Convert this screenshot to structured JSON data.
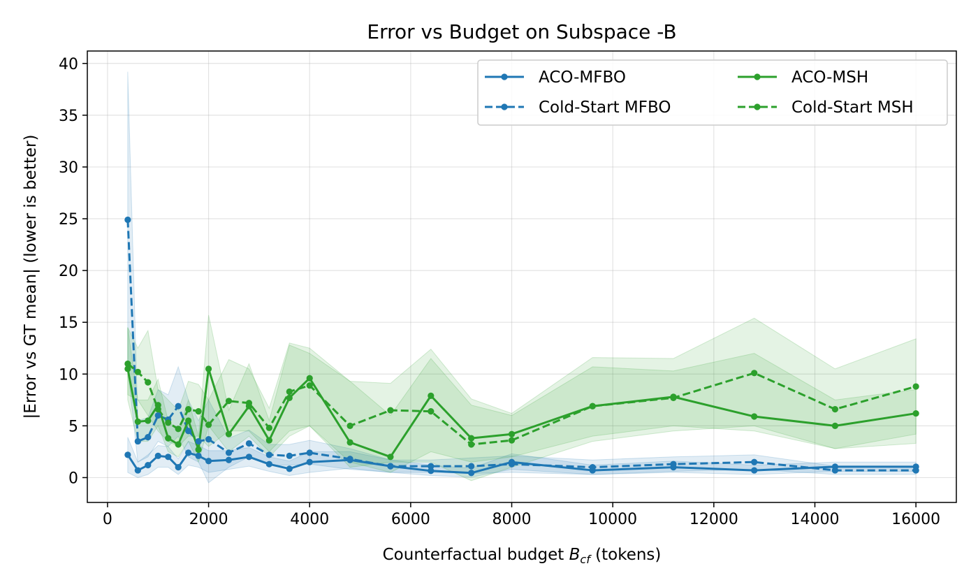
{
  "chart_data": {
    "type": "line",
    "title": "Error vs Budget on Subspace -B",
    "xlabel": "Counterfactual budget B_cf (tokens)",
    "xlabel_parts": {
      "prefix": "Counterfactual budget ",
      "var": "B",
      "sub": "cf",
      "suffix": " (tokens)"
    },
    "ylabel": "|Error vs GT mean| (lower is better)",
    "xlim": [
      -400,
      16800
    ],
    "ylim": [
      -2.4,
      41.2
    ],
    "xticks": [
      0,
      2000,
      4000,
      6000,
      8000,
      10000,
      12000,
      14000,
      16000
    ],
    "yticks": [
      0,
      5,
      10,
      15,
      20,
      25,
      30,
      35,
      40
    ],
    "grid": true,
    "legend_position": "top-right",
    "legend_columns": 2,
    "series": [
      {
        "name": "ACO-MFBO",
        "color": "#1f77b4",
        "style": "solid",
        "x": [
          400,
          600,
          800,
          1000,
          1200,
          1400,
          1600,
          1800,
          2000,
          2400,
          2800,
          3200,
          3600,
          4000,
          4800,
          5600,
          6400,
          7200,
          8000,
          9600,
          11200,
          12800,
          14400,
          16000
        ],
        "y": [
          2.2,
          0.7,
          1.2,
          2.1,
          2.0,
          1.0,
          2.4,
          2.1,
          1.6,
          1.7,
          2.0,
          1.3,
          0.85,
          1.5,
          1.7,
          1.1,
          0.65,
          0.45,
          1.5,
          0.7,
          1.0,
          0.7,
          1.05,
          1.05
        ],
        "lower": [
          0.5,
          0.0,
          0.3,
          1.0,
          1.0,
          0.3,
          1.2,
          1.0,
          0.5,
          0.8,
          1.1,
          0.6,
          0.2,
          0.5,
          0.9,
          0.5,
          0.2,
          0.05,
          0.8,
          0.3,
          0.5,
          0.3,
          0.6,
          0.6
        ],
        "upper": [
          3.9,
          1.5,
          2.2,
          3.1,
          3.0,
          1.8,
          3.5,
          3.1,
          2.6,
          2.6,
          2.9,
          2.0,
          1.6,
          2.5,
          2.5,
          1.7,
          1.2,
          0.9,
          2.3,
          1.2,
          1.6,
          1.2,
          1.5,
          1.5
        ]
      },
      {
        "name": "Cold-Start MFBO",
        "color": "#1f77b4",
        "style": "dashed",
        "x": [
          400,
          600,
          800,
          1000,
          1200,
          1400,
          1600,
          1800,
          2000,
          2400,
          2800,
          3200,
          3600,
          4000,
          4800,
          5600,
          6400,
          7200,
          8000,
          9600,
          11200,
          12800,
          14400,
          16000
        ],
        "y": [
          24.9,
          3.5,
          3.9,
          6.0,
          5.6,
          6.9,
          4.5,
          3.5,
          3.7,
          2.4,
          3.3,
          2.2,
          2.1,
          2.4,
          1.8,
          1.1,
          1.1,
          1.1,
          1.3,
          1.0,
          1.3,
          1.5,
          0.7,
          0.7
        ],
        "lower": [
          10.5,
          1.5,
          2.0,
          3.5,
          3.0,
          4.0,
          2.0,
          1.5,
          -0.5,
          1.0,
          2.0,
          1.2,
          1.2,
          1.3,
          0.8,
          0.5,
          0.5,
          0.4,
          0.5,
          0.3,
          0.6,
          0.8,
          0.3,
          0.3
        ],
        "upper": [
          39.2,
          5.5,
          5.8,
          8.5,
          8.0,
          10.7,
          7.5,
          5.5,
          7.5,
          3.8,
          4.6,
          3.2,
          3.2,
          3.6,
          2.8,
          1.7,
          1.7,
          1.9,
          2.1,
          1.7,
          2.0,
          2.2,
          1.1,
          1.1
        ]
      },
      {
        "name": "ACO-MSH",
        "color": "#2ca02c",
        "style": "solid",
        "x": [
          400,
          600,
          800,
          1000,
          1200,
          1400,
          1600,
          1800,
          2000,
          2400,
          2800,
          3200,
          3600,
          4000,
          4800,
          5600,
          6400,
          7200,
          8000,
          9600,
          11200,
          12800,
          14400,
          16000
        ],
        "y": [
          10.5,
          5.4,
          5.5,
          7.0,
          3.8,
          3.2,
          5.5,
          2.7,
          10.5,
          4.2,
          6.9,
          3.6,
          7.7,
          9.6,
          3.4,
          2.0,
          7.9,
          3.8,
          4.2,
          6.9,
          7.8,
          5.9,
          5.0,
          6.2
        ],
        "lower": [
          7.5,
          3.5,
          3.5,
          5.0,
          2.5,
          2.0,
          3.5,
          1.5,
          5.0,
          2.5,
          4.0,
          2.0,
          4.0,
          5.0,
          1.5,
          0.5,
          2.5,
          1.5,
          2.0,
          4.0,
          5.0,
          4.5,
          2.8,
          4.2
        ],
        "upper": [
          14.5,
          7.5,
          7.5,
          9.5,
          5.5,
          4.5,
          7.5,
          4.0,
          15.7,
          6.5,
          11.0,
          5.5,
          12.8,
          12.0,
          9.3,
          6.0,
          11.5,
          7.0,
          6.0,
          10.7,
          10.3,
          12.0,
          7.5,
          8.5
        ]
      },
      {
        "name": "Cold-Start MSH",
        "color": "#2ca02c",
        "style": "dashed",
        "x": [
          400,
          600,
          800,
          1000,
          1200,
          1400,
          1600,
          1800,
          2000,
          2400,
          2800,
          3200,
          3600,
          4000,
          4800,
          5600,
          6400,
          7200,
          8000,
          9600,
          11200,
          12800,
          14400,
          16000
        ],
        "y": [
          11.0,
          10.2,
          9.2,
          6.6,
          5.3,
          4.7,
          6.6,
          6.4,
          5.1,
          7.4,
          7.2,
          4.8,
          8.3,
          8.9,
          5.0,
          6.5,
          6.4,
          3.2,
          3.6,
          6.9,
          7.7,
          10.1,
          6.6,
          8.8
        ],
        "lower": [
          8.0,
          7.5,
          6.0,
          4.5,
          3.5,
          3.0,
          4.0,
          4.0,
          3.0,
          4.5,
          4.5,
          2.5,
          4.5,
          5.0,
          1.0,
          1.5,
          1.5,
          -0.3,
          1.0,
          3.5,
          4.5,
          5.0,
          2.8,
          3.3
        ],
        "upper": [
          14.5,
          12.5,
          14.2,
          8.5,
          7.5,
          6.5,
          9.3,
          9.0,
          7.5,
          11.4,
          10.5,
          6.7,
          13.0,
          12.5,
          9.3,
          9.1,
          12.4,
          7.6,
          6.2,
          11.6,
          11.5,
          15.4,
          10.5,
          13.4
        ]
      }
    ]
  }
}
